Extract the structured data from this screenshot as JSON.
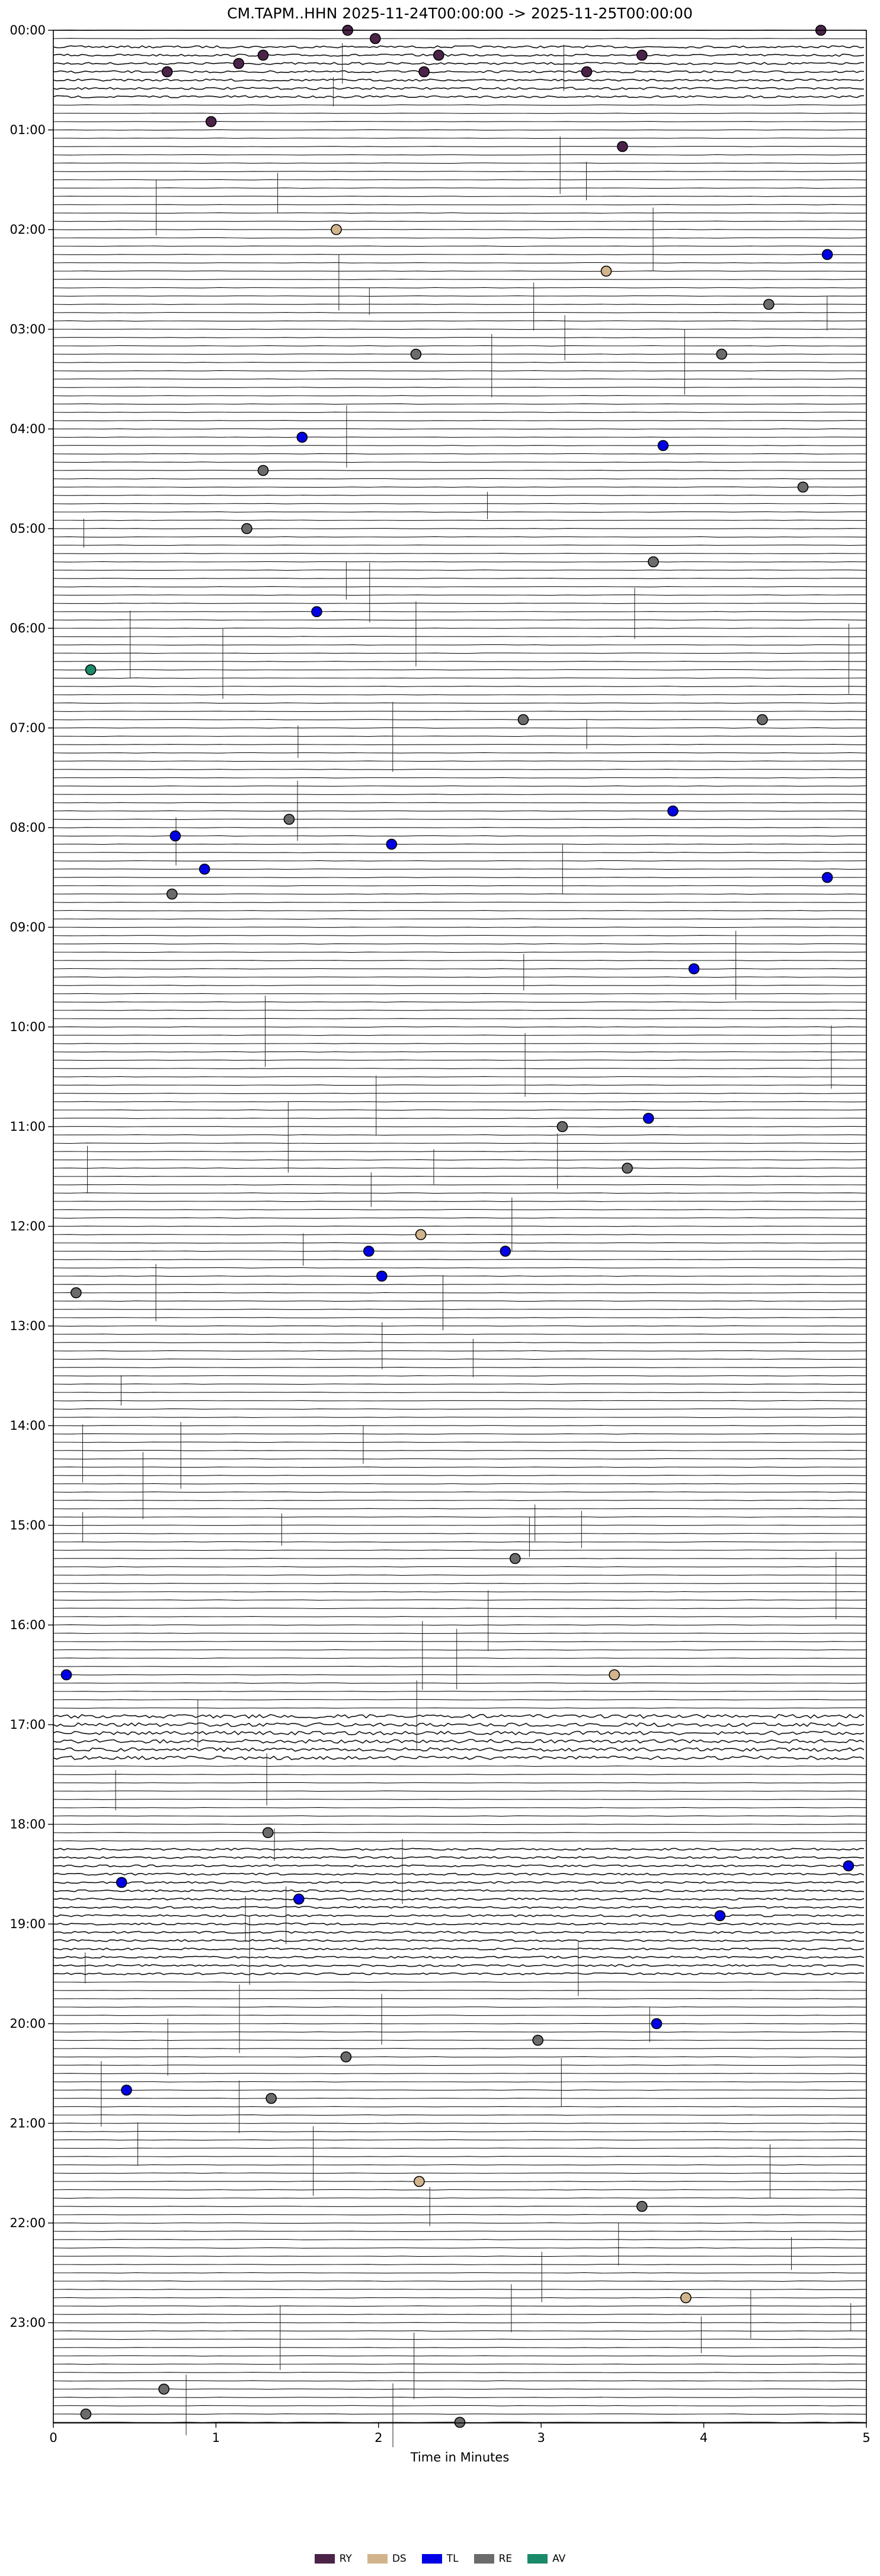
{
  "chart_data": {
    "type": "scatter",
    "subtype": "helicorder",
    "title": "CM.TAPM..HHN  2025-11-24T00:00:00 -> 2025-11-25T00:00:00",
    "xlabel": "Time in Minutes",
    "ylabel": "",
    "xlim": [
      0,
      5
    ],
    "xticks": [
      "0",
      "1",
      "2",
      "3",
      "4",
      "5"
    ],
    "ylim_hours": [
      0,
      24
    ],
    "row_minutes": 5,
    "yticks": [
      "00:00",
      "01:00",
      "02:00",
      "03:00",
      "04:00",
      "05:00",
      "06:00",
      "07:00",
      "08:00",
      "09:00",
      "10:00",
      "11:00",
      "12:00",
      "13:00",
      "14:00",
      "15:00",
      "16:00",
      "17:00",
      "18:00",
      "19:00",
      "20:00",
      "21:00",
      "22:00",
      "23:00"
    ],
    "legend_position": "bottom-center",
    "legend": [
      {
        "code": "RY",
        "color": "#4b2348"
      },
      {
        "code": "DS",
        "color": "#d2b48c"
      },
      {
        "code": "TL",
        "color": "#0000e6"
      },
      {
        "code": "RE",
        "color": "#6b6b6b"
      },
      {
        "code": "AV",
        "color": "#1a8a6a"
      }
    ],
    "noisy_hours": [
      {
        "start": 0.1,
        "end": 0.7,
        "level": 0.6
      },
      {
        "start": 16.9,
        "end": 17.35,
        "level": 1.0
      },
      {
        "start": 18.2,
        "end": 19.5,
        "level": 0.55
      }
    ],
    "events": [
      {
        "h": 0.0,
        "m": 1.81,
        "c": "RY"
      },
      {
        "h": 0.0,
        "m": 4.72,
        "c": "RY"
      },
      {
        "h": 0.0833,
        "m": 1.98,
        "c": "RY"
      },
      {
        "h": 0.25,
        "m": 1.29,
        "c": "RY"
      },
      {
        "h": 0.25,
        "m": 2.37,
        "c": "RY"
      },
      {
        "h": 0.25,
        "m": 3.62,
        "c": "RY"
      },
      {
        "h": 0.3333,
        "m": 1.14,
        "c": "RY"
      },
      {
        "h": 0.4167,
        "m": 0.7,
        "c": "RY"
      },
      {
        "h": 0.4167,
        "m": 2.28,
        "c": "RY"
      },
      {
        "h": 0.4167,
        "m": 3.28,
        "c": "RY"
      },
      {
        "h": 0.9167,
        "m": 0.97,
        "c": "RY"
      },
      {
        "h": 1.1667,
        "m": 3.5,
        "c": "RY"
      },
      {
        "h": 2.0,
        "m": 1.74,
        "c": "DS"
      },
      {
        "h": 2.25,
        "m": 4.76,
        "c": "TL"
      },
      {
        "h": 2.4167,
        "m": 3.4,
        "c": "DS"
      },
      {
        "h": 2.75,
        "m": 4.4,
        "c": "RE"
      },
      {
        "h": 3.25,
        "m": 2.23,
        "c": "RE"
      },
      {
        "h": 3.25,
        "m": 4.11,
        "c": "RE"
      },
      {
        "h": 4.0833,
        "m": 1.53,
        "c": "TL"
      },
      {
        "h": 4.1667,
        "m": 3.75,
        "c": "TL"
      },
      {
        "h": 4.4167,
        "m": 1.29,
        "c": "RE"
      },
      {
        "h": 4.5833,
        "m": 4.61,
        "c": "RE"
      },
      {
        "h": 5.0,
        "m": 1.19,
        "c": "RE"
      },
      {
        "h": 5.3333,
        "m": 3.69,
        "c": "RE"
      },
      {
        "h": 5.8333,
        "m": 1.62,
        "c": "TL"
      },
      {
        "h": 6.4167,
        "m": 0.23,
        "c": "AV"
      },
      {
        "h": 6.9167,
        "m": 2.89,
        "c": "RE"
      },
      {
        "h": 6.9167,
        "m": 4.36,
        "c": "RE"
      },
      {
        "h": 7.8333,
        "m": 3.81,
        "c": "TL"
      },
      {
        "h": 7.9167,
        "m": 1.45,
        "c": "RE"
      },
      {
        "h": 8.0833,
        "m": 0.75,
        "c": "TL"
      },
      {
        "h": 8.1667,
        "m": 2.08,
        "c": "TL"
      },
      {
        "h": 8.4167,
        "m": 0.93,
        "c": "TL"
      },
      {
        "h": 8.5,
        "m": 4.76,
        "c": "TL"
      },
      {
        "h": 8.6667,
        "m": 0.73,
        "c": "RE"
      },
      {
        "h": 9.4167,
        "m": 3.94,
        "c": "TL"
      },
      {
        "h": 10.9167,
        "m": 3.66,
        "c": "TL"
      },
      {
        "h": 11.0,
        "m": 3.13,
        "c": "RE"
      },
      {
        "h": 11.4167,
        "m": 3.53,
        "c": "RE"
      },
      {
        "h": 12.0833,
        "m": 2.26,
        "c": "DS"
      },
      {
        "h": 12.25,
        "m": 1.94,
        "c": "TL"
      },
      {
        "h": 12.25,
        "m": 2.78,
        "c": "TL"
      },
      {
        "h": 12.5,
        "m": 2.02,
        "c": "TL"
      },
      {
        "h": 12.6667,
        "m": 0.14,
        "c": "RE"
      },
      {
        "h": 15.3333,
        "m": 2.84,
        "c": "RE"
      },
      {
        "h": 16.5,
        "m": 0.08,
        "c": "TL"
      },
      {
        "h": 16.5,
        "m": 3.45,
        "c": "DS"
      },
      {
        "h": 18.0833,
        "m": 1.32,
        "c": "RE"
      },
      {
        "h": 18.4167,
        "m": 4.89,
        "c": "TL"
      },
      {
        "h": 18.5833,
        "m": 0.42,
        "c": "TL"
      },
      {
        "h": 18.75,
        "m": 1.51,
        "c": "TL"
      },
      {
        "h": 18.9167,
        "m": 4.1,
        "c": "TL"
      },
      {
        "h": 20.0,
        "m": 3.71,
        "c": "TL"
      },
      {
        "h": 20.1667,
        "m": 2.98,
        "c": "RE"
      },
      {
        "h": 20.3333,
        "m": 1.8,
        "c": "RE"
      },
      {
        "h": 20.6667,
        "m": 0.45,
        "c": "TL"
      },
      {
        "h": 20.75,
        "m": 1.34,
        "c": "RE"
      },
      {
        "h": 21.5833,
        "m": 2.25,
        "c": "DS"
      },
      {
        "h": 21.8333,
        "m": 3.62,
        "c": "RE"
      },
      {
        "h": 22.75,
        "m": 3.89,
        "c": "DS"
      },
      {
        "h": 23.6667,
        "m": 0.68,
        "c": "RE"
      },
      {
        "h": 23.9167,
        "m": 0.2,
        "c": "RE"
      },
      {
        "h": 24.0,
        "m": 2.5,
        "c": "RE"
      }
    ]
  }
}
